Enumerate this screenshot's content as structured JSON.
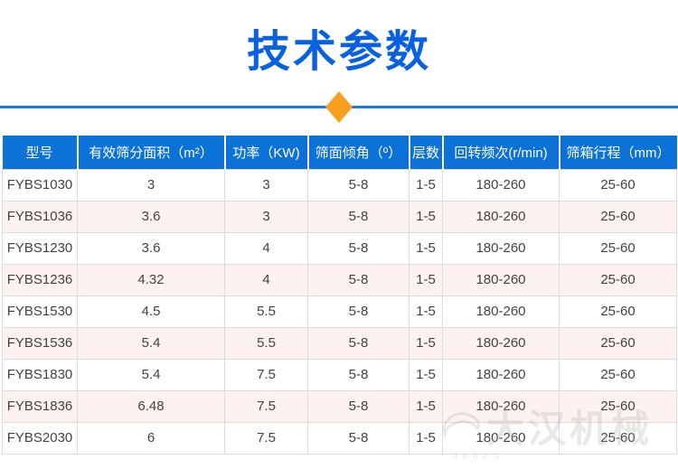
{
  "page": {
    "title": "技术参数",
    "colors": {
      "title_blue": "#0961e0",
      "divider_line_blue": "#1d79e5",
      "diamond_orange": "#f6a01e",
      "table_header_blue": "#0d72d8",
      "row_stripe_pink": "#fdf2ef",
      "cell_border_gray": "#dcdcdc",
      "cell_text": "#424242"
    },
    "watermark": {
      "text": "大汉机械",
      "subtext": "dahan"
    }
  },
  "table": {
    "columns": [
      "型号",
      "有效筛分面积（m²）",
      "功率（KW)",
      "筛面倾角（º）",
      "层数",
      "回转频次(r/min)",
      "筛箱行程（mm）"
    ],
    "rows": [
      [
        "FYBS1030",
        "3",
        "3",
        "5-8",
        "1-5",
        "180-260",
        "25-60"
      ],
      [
        "FYBS1036",
        "3.6",
        "3",
        "5-8",
        "1-5",
        "180-260",
        "25-60"
      ],
      [
        "FYBS1230",
        "3.6",
        "4",
        "5-8",
        "1-5",
        "180-260",
        "25-60"
      ],
      [
        "FYBS1236",
        "4.32",
        "4",
        "5-8",
        "1-5",
        "180-260",
        "25-60"
      ],
      [
        "FYBS1530",
        "4.5",
        "5.5",
        "5-8",
        "1-5",
        "180-260",
        "25-60"
      ],
      [
        "FYBS1536",
        "5.4",
        "5.5",
        "5-8",
        "1-5",
        "180-260",
        "25-60"
      ],
      [
        "FYBS1830",
        "5.4",
        "7.5",
        "5-8",
        "1-5",
        "180-260",
        "25-60"
      ],
      [
        "FYBS1836",
        "6.48",
        "7.5",
        "5-8",
        "1-5",
        "180-260",
        "25-60"
      ],
      [
        "FYBS2030",
        "6",
        "7.5",
        "5-8",
        "1-5",
        "180-260",
        "25-60"
      ]
    ]
  }
}
